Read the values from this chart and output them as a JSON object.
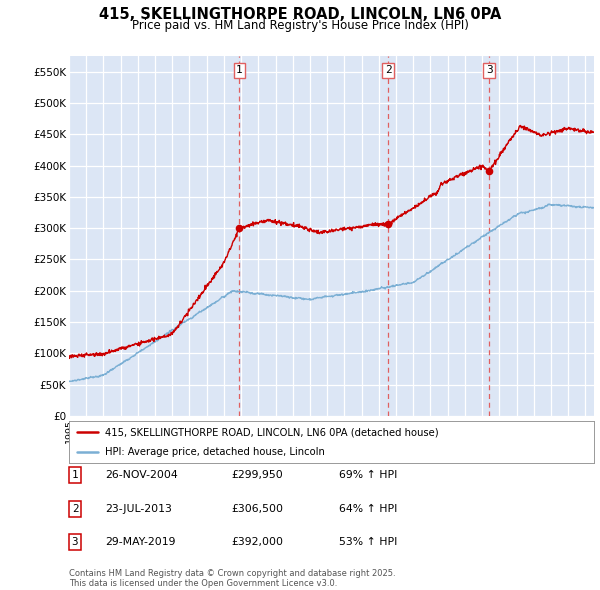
{
  "title": "415, SKELLINGTHORPE ROAD, LINCOLN, LN6 0PA",
  "subtitle": "Price paid vs. HM Land Registry's House Price Index (HPI)",
  "title_fontsize": 10.5,
  "subtitle_fontsize": 8.5,
  "background_color": "#ffffff",
  "plot_bg_color": "#dce6f5",
  "grid_color": "#ffffff",
  "ylim": [
    0,
    575000
  ],
  "yticks": [
    0,
    50000,
    100000,
    150000,
    200000,
    250000,
    300000,
    350000,
    400000,
    450000,
    500000,
    550000
  ],
  "ytick_labels": [
    "£0",
    "£50K",
    "£100K",
    "£150K",
    "£200K",
    "£250K",
    "£300K",
    "£350K",
    "£400K",
    "£450K",
    "£500K",
    "£550K"
  ],
  "red_line_color": "#cc0000",
  "blue_line_color": "#7bafd4",
  "vline_color": "#e06060",
  "sale1_x": 2004.9,
  "sale1_y": 299950,
  "sale2_x": 2013.55,
  "sale2_y": 306500,
  "sale3_x": 2019.41,
  "sale3_y": 392000,
  "legend_label_red": "415, SKELLINGTHORPE ROAD, LINCOLN, LN6 0PA (detached house)",
  "legend_label_blue": "HPI: Average price, detached house, Lincoln",
  "table_entries": [
    {
      "num": "1",
      "date": "26-NOV-2004",
      "price": "£299,950",
      "pct": "69% ↑ HPI"
    },
    {
      "num": "2",
      "date": "23-JUL-2013",
      "price": "£306,500",
      "pct": "64% ↑ HPI"
    },
    {
      "num": "3",
      "date": "29-MAY-2019",
      "price": "£392,000",
      "pct": "53% ↑ HPI"
    }
  ],
  "footnote": "Contains HM Land Registry data © Crown copyright and database right 2025.\nThis data is licensed under the Open Government Licence v3.0.",
  "xmin": 1995.0,
  "xmax": 2025.5,
  "xmin_data": 1995.0,
  "noise_seed": 7
}
